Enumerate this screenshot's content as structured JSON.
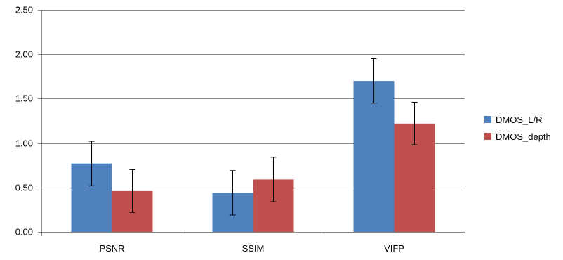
{
  "chart_data": {
    "type": "bar",
    "categories": [
      "PSNR",
      "SSIM",
      "VIFP"
    ],
    "series": [
      {
        "name": "DMOS_L/R",
        "values": [
          0.77,
          0.44,
          1.7
        ],
        "errors": [
          0.25,
          0.25,
          0.25
        ],
        "color": "#4f81bd"
      },
      {
        "name": "DMOS_depth",
        "values": [
          0.46,
          0.59,
          1.22
        ],
        "errors": [
          0.24,
          0.25,
          0.24
        ],
        "color": "#c0504d"
      }
    ],
    "ylim": [
      0,
      2.5
    ],
    "yticks": [
      "0.00",
      "0.50",
      "1.00",
      "1.50",
      "2.00",
      "2.50"
    ],
    "grid": true,
    "legend_position": "right",
    "title": "",
    "xlabel": "",
    "ylabel": ""
  }
}
